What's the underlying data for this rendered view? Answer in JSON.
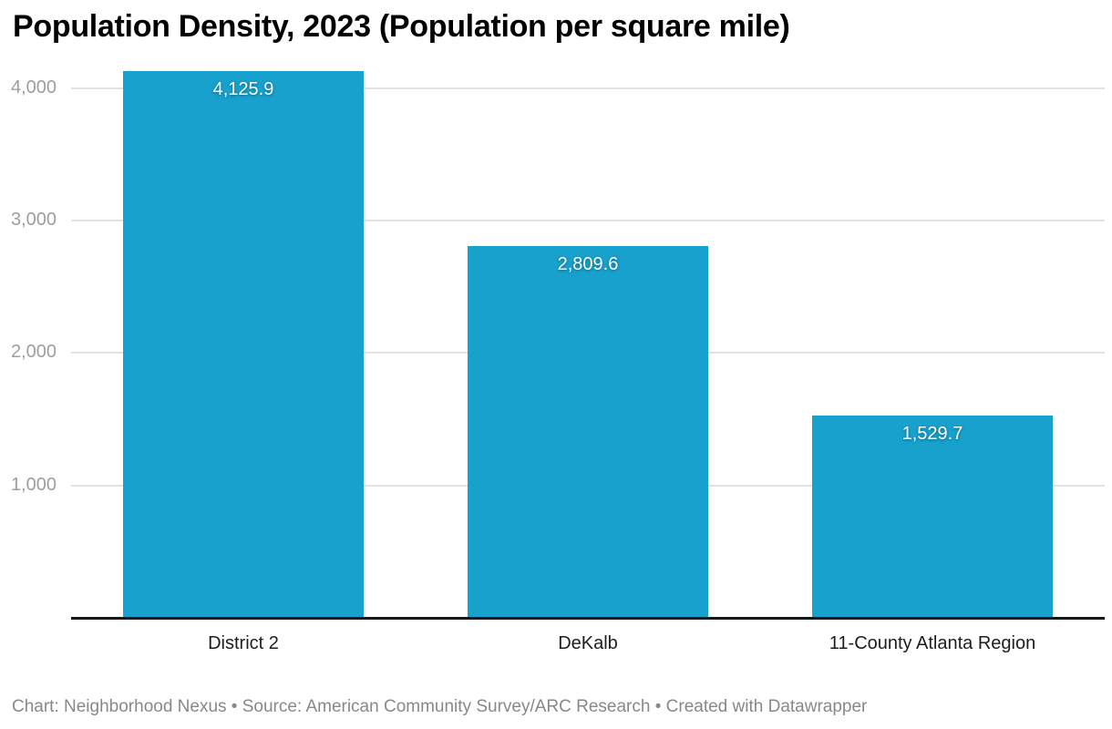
{
  "title": "Population Density, 2023 (Population per square mile)",
  "footer": {
    "text": "Chart: Neighborhood Nexus • Source: American Community Survey/ARC Research • Created with Datawrapper"
  },
  "colors": {
    "bar": "#18a1cd",
    "title_text": "#000000",
    "y_tick_label": "#9e9e9e",
    "category_label": "#1d1d1d",
    "value_label": "#ffffff",
    "gridline": "#e2e2e2",
    "baseline": "#171717",
    "footer_text": "#888888",
    "background": "#ffffff"
  },
  "chart_data": {
    "type": "bar",
    "title": "Population Density, 2023 (Population per square mile)",
    "categories": [
      "District 2",
      "DeKalb",
      "11-County Atlanta Region"
    ],
    "values": [
      4125.9,
      2809.6,
      1529.7
    ],
    "value_labels": [
      "4,125.9",
      "2,809.6",
      "1,529.7"
    ],
    "series_color": "#18a1cd",
    "xlabel": "",
    "ylabel": "",
    "ylim": [
      0,
      4200
    ],
    "y_ticks": [
      1000,
      2000,
      3000,
      4000
    ],
    "y_tick_labels": [
      "1,000",
      "2,000",
      "3,000",
      "4,000"
    ],
    "grid": "horizontal-gridlines-behind-bars",
    "legend": "none",
    "value_labels_position": "inside-top-center",
    "attribution": "Chart: Neighborhood Nexus • Source: American Community Survey/ARC Research • Created with Datawrapper"
  }
}
